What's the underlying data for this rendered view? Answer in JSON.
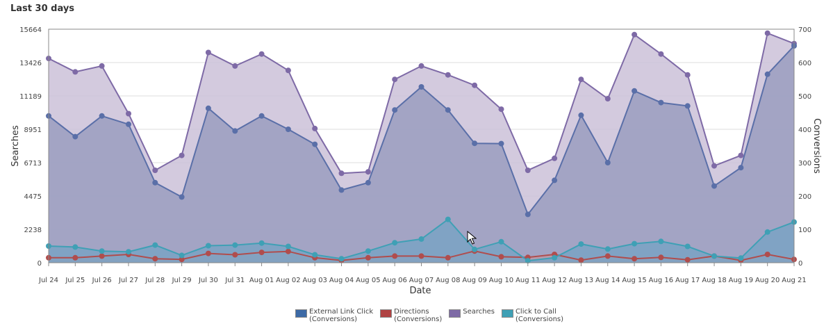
{
  "panel": {
    "title": "Last 30 days"
  },
  "chart_data": {
    "type": "area",
    "xlabel": "Date",
    "ylabel_left": "Searches",
    "ylabel_right": "Conversions",
    "categories": [
      "Jul 24",
      "Jul 25",
      "Jul 26",
      "Jul 27",
      "Jul 28",
      "Jul 29",
      "Jul 30",
      "Jul 31",
      "Aug 01",
      "Aug 02",
      "Aug 03",
      "Aug 04",
      "Aug 05",
      "Aug 06",
      "Aug 07",
      "Aug 08",
      "Aug 09",
      "Aug 10",
      "Aug 11",
      "Aug 12",
      "Aug 13",
      "Aug 14",
      "Aug 15",
      "Aug 16",
      "Aug 17",
      "Aug 18",
      "Aug 19",
      "Aug 20",
      "Aug 21"
    ],
    "y_left": {
      "ticks": [
        "0",
        "2238",
        "4475",
        "6713",
        "8951",
        "11189",
        "13426",
        "15664"
      ],
      "min": 0,
      "max": 15664
    },
    "y_right": {
      "ticks": [
        "0",
        "100",
        "200",
        "300",
        "400",
        "500",
        "600",
        "700"
      ],
      "min": 0,
      "max": 700
    },
    "grid": true,
    "legend_position": "bottom",
    "series": [
      {
        "key": "searches",
        "name": "Searches",
        "axis": "left",
        "color": "#7e6aa6",
        "fill": "#cbc1d8",
        "values": [
          13700,
          12800,
          13200,
          10000,
          6200,
          7200,
          14100,
          13200,
          14000,
          12900,
          9000,
          6000,
          6100,
          12300,
          13200,
          12600,
          11900,
          10300,
          6200,
          7000,
          12300,
          11000,
          15300,
          14000,
          12600,
          6500,
          7200,
          15400,
          14700
        ]
      },
      {
        "key": "external_link",
        "name": "External Link Click",
        "subname": "(Conversions)",
        "axis": "right",
        "color": "#5a6fa8",
        "fill": "#9a9dc0",
        "values": [
          440,
          378,
          440,
          415,
          240,
          197,
          463,
          395,
          440,
          400,
          355,
          218,
          240,
          458,
          527,
          458,
          358,
          357,
          145,
          247,
          442,
          300,
          515,
          480,
          470,
          230,
          285,
          565,
          650
        ]
      },
      {
        "key": "directions",
        "name": "Directions",
        "subname": "(Conversions)",
        "axis": "right",
        "color": "#b04d4d",
        "fill": "#b89aa8",
        "values": [
          15,
          15,
          20,
          25,
          12,
          10,
          28,
          24,
          31,
          34,
          15,
          7,
          15,
          20,
          20,
          15,
          35,
          18,
          16,
          25,
          8,
          20,
          12,
          16,
          9,
          20,
          7,
          25,
          10
        ]
      },
      {
        "key": "click_to_call",
        "name": "Click to Call",
        "subname": "(Conversions)",
        "axis": "right",
        "color": "#3fa0b5",
        "fill": "#7aa3c4",
        "values": [
          50,
          47,
          35,
          33,
          53,
          22,
          51,
          53,
          59,
          49,
          24,
          12,
          35,
          60,
          71,
          130,
          40,
          63,
          6,
          15,
          56,
          41,
          57,
          64,
          49,
          20,
          14,
          92,
          122
        ]
      }
    ]
  }
}
